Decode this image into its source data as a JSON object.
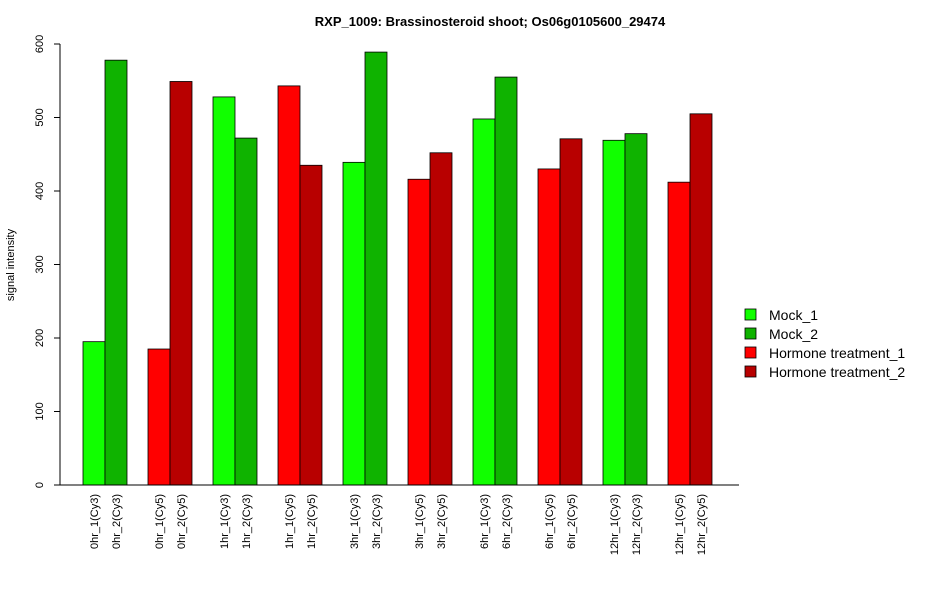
{
  "chart_data": {
    "type": "bar",
    "title": "RXP_1009: Brassinosteroid shoot; Os06g0105600_29474",
    "ylabel": "signal intensity",
    "ylim": [
      0,
      600
    ],
    "yticks": [
      0,
      100,
      200,
      300,
      400,
      500,
      600
    ],
    "legend_position": "right",
    "categories": [
      "0hr_1(Cy3)",
      "0hr_2(Cy3)",
      "0hr_1(Cy5)",
      "0hr_2(Cy5)",
      "1hr_1(Cy3)",
      "1hr_2(Cy3)",
      "1hr_1(Cy5)",
      "1hr_2(Cy5)",
      "3hr_1(Cy3)",
      "3hr_2(Cy3)",
      "3hr_1(Cy5)",
      "3hr_2(Cy5)",
      "6hr_1(Cy3)",
      "6hr_2(Cy3)",
      "6hr_1(Cy5)",
      "6hr_2(Cy5)",
      "12hr_1(Cy3)",
      "12hr_2(Cy3)",
      "12hr_1(Cy5)",
      "12hr_2(Cy5)"
    ],
    "values": [
      195,
      578,
      185,
      549,
      528,
      472,
      543,
      435,
      439,
      589,
      416,
      452,
      498,
      555,
      430,
      471,
      469,
      478,
      412,
      505
    ],
    "bar_series": [
      0,
      1,
      2,
      3,
      0,
      1,
      2,
      3,
      0,
      1,
      2,
      3,
      0,
      1,
      2,
      3,
      0,
      1,
      2,
      3
    ],
    "series": [
      {
        "name": "Mock_1",
        "color": "#11ff00"
      },
      {
        "name": "Mock_2",
        "color": "#0fb300"
      },
      {
        "name": "Hormone treatment_1",
        "color": "#ff0000"
      },
      {
        "name": "Hormone treatment_2",
        "color": "#b80000"
      }
    ]
  }
}
